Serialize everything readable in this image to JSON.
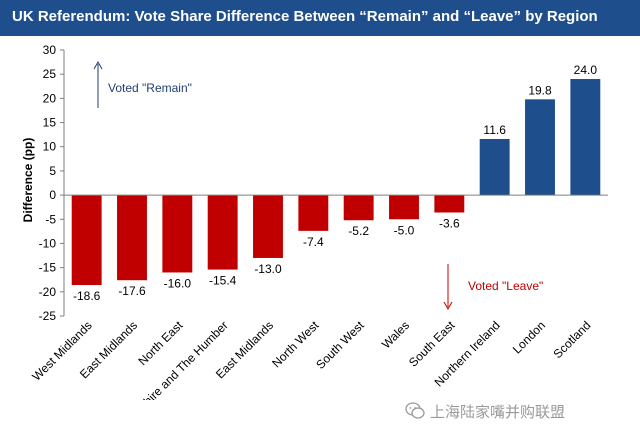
{
  "header": {
    "title": "UK Referendum: Vote Share Difference Between “Remain” and “Leave” by Region"
  },
  "colors": {
    "title_bg": "#1f4e8c",
    "leave": "#c00000",
    "remain": "#1f4e8c",
    "remain_annotation": "#1f3f72",
    "leave_annotation": "#c00000"
  },
  "chart_data": {
    "type": "bar",
    "title": "UK Referendum: Vote Share Difference Between “Remain” and “Leave” by Region",
    "xlabel": "",
    "ylabel": "Difference (pp)",
    "ylim": [
      -25,
      30
    ],
    "yticks": [
      -25,
      -20,
      -15,
      -10,
      -5,
      0,
      5,
      10,
      15,
      20,
      25,
      30
    ],
    "grid": false,
    "categories": [
      "West Midlands",
      "East Midlands",
      "North East",
      "Yorkshire and The Humber",
      "East Midlands",
      "North West",
      "South West",
      "Wales",
      "South East",
      "Northern Ireland",
      "London",
      "Scotland"
    ],
    "values": [
      -18.6,
      -17.6,
      -16.0,
      -15.4,
      -13.0,
      -7.4,
      -5.2,
      -5.0,
      -3.6,
      11.6,
      19.8,
      24.0
    ],
    "data_labels": [
      "-18.6",
      "-17.6",
      "-16.0",
      "-15.4",
      "-13.0",
      "-7.4",
      "-5.2",
      "-5.0",
      "-3.6",
      "11.6",
      "19.8",
      "24.0"
    ],
    "annotations": {
      "remain": "Voted \"Remain\"",
      "leave": "Voted \"Leave\""
    }
  },
  "watermark": {
    "text": "上海陆家嘴并购联盟",
    "icon": "wechat-icon"
  }
}
